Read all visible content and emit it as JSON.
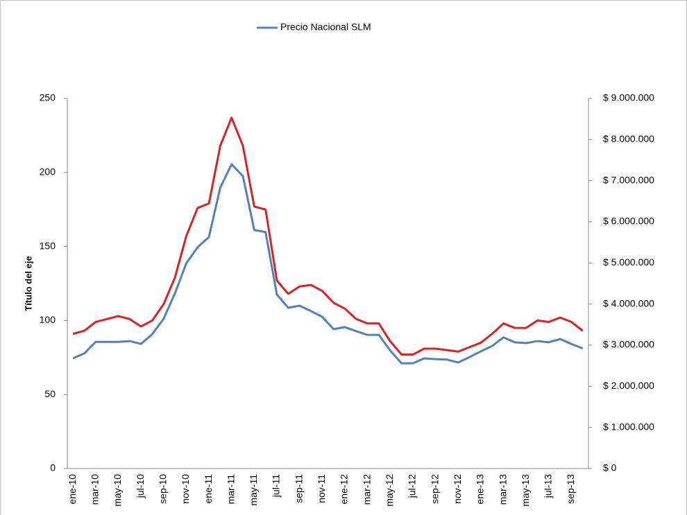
{
  "chart_data": {
    "type": "line",
    "categories": [
      "ene-10",
      null,
      "mar-10",
      null,
      "may-10",
      null,
      "jul-10",
      null,
      "sep-10",
      null,
      "nov-10",
      null,
      "ene-11",
      null,
      "mar-11",
      null,
      "may-11",
      null,
      "jul-11",
      null,
      "sep-11",
      null,
      "nov-11",
      null,
      "ene-12",
      null,
      "mar-12",
      null,
      "may-12",
      null,
      "jul-12",
      null,
      "sep-12",
      null,
      "nov-12",
      null,
      "ene-13",
      null,
      "mar-13",
      null,
      "may-13",
      null,
      "jul-13",
      null,
      "sep-13",
      null
    ],
    "series": [
      {
        "name": "Precio Nacional SLM",
        "color": "#4f81bd",
        "axis": "y2",
        "values": [
          2680000,
          2800000,
          3080000,
          3080000,
          3080000,
          3100000,
          3030000,
          3270000,
          3640000,
          4260000,
          4990000,
          5380000,
          5630000,
          6830000,
          7400000,
          7110000,
          5800000,
          5750000,
          4230000,
          3910000,
          3960000,
          3830000,
          3690000,
          3390000,
          3440000,
          3340000,
          3250000,
          3250000,
          2870000,
          2560000,
          2560000,
          2680000,
          2660000,
          2650000,
          2580000,
          2710000,
          2850000,
          2980000,
          3190000,
          3070000,
          3050000,
          3100000,
          3070000,
          3150000,
          3030000,
          2920000
        ]
      },
      {
        "color": "#e02020",
        "values": [
          91,
          93,
          99,
          101,
          103,
          101,
          96,
          100,
          111,
          129,
          157,
          176,
          179,
          218,
          237,
          218,
          177,
          175,
          127,
          118,
          123,
          124,
          120,
          112,
          108,
          101,
          98,
          98,
          86,
          77,
          77,
          81,
          81,
          80,
          79,
          82,
          85,
          91,
          98,
          95,
          95,
          100,
          99,
          102,
          99,
          93
        ]
      }
    ],
    "y_label": "Título del eje",
    "ylim": [
      0,
      250
    ],
    "yticks": [
      0,
      50,
      100,
      150,
      200,
      250
    ],
    "y2lim": [
      0,
      9000000
    ],
    "y2ticks": [
      {
        "value": 0,
        "label": "$ 0"
      },
      {
        "value": 1000000,
        "label": "$ 1.000.000"
      },
      {
        "value": 2000000,
        "label": "$ 2.000.000"
      },
      {
        "value": 3000000,
        "label": "$ 3.000.000"
      },
      {
        "value": 4000000,
        "label": "$ 4.000.000"
      },
      {
        "value": 5000000,
        "label": "$ 5.000.000"
      },
      {
        "value": 6000000,
        "label": "$ 6.000.000"
      },
      {
        "value": 7000000,
        "label": "$ 7.000.000"
      },
      {
        "value": 8000000,
        "label": "$ 8.000.000"
      },
      {
        "value": 9000000,
        "label": "$ 9.000.000"
      }
    ],
    "legend": "top"
  }
}
